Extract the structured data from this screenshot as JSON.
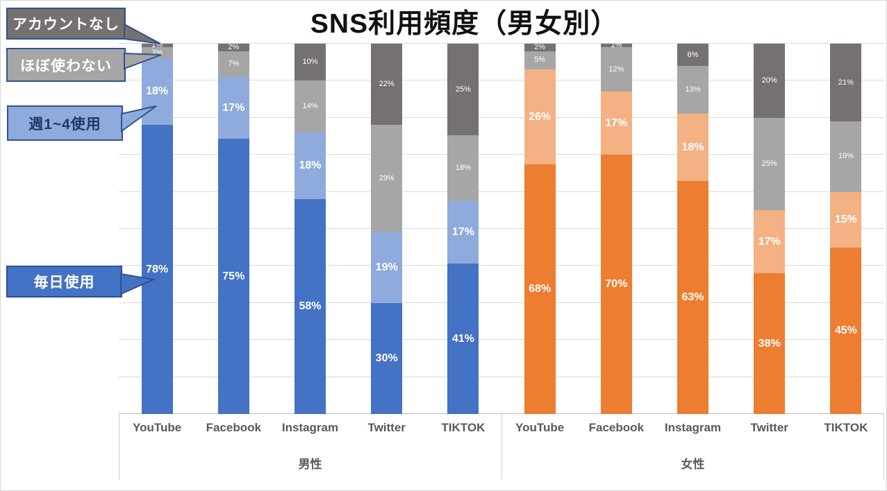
{
  "title": "SNS利用頻度（男女別）",
  "callouts": [
    {
      "label": "アカウントなし",
      "bg": "#767171",
      "text_color": "#ffffff",
      "border": "#2e5290"
    },
    {
      "label": "ほぼ使わない",
      "bg": "#a6a6a6",
      "text_color": "#ffffff",
      "border": "#2e5290"
    },
    {
      "label": "週1~4使用",
      "bg": "#8faadc",
      "text_color": "#1f3864",
      "border": "#2e5290"
    },
    {
      "label": "毎日使用",
      "bg": "#4472c4",
      "text_color": "#ffffff",
      "border": "#2e5290"
    }
  ],
  "chart_data": {
    "type": "bar",
    "subtype": "100%-stacked-column",
    "title": "SNS利用頻度（男女別）",
    "categories": [
      "YouTube",
      "Facebook",
      "Instagram",
      "Twitter",
      "TIKTOK"
    ],
    "stack_order_bottom_to_top": [
      "毎日使用",
      "週1~4使用",
      "ほぼ使わない",
      "アカウントなし"
    ],
    "groups": [
      {
        "label": "男性",
        "series": [
          {
            "name": "毎日使用",
            "color": "#4472c4",
            "label_style": "large",
            "values": [
              78,
              75,
              58,
              30,
              41
            ]
          },
          {
            "name": "週1~4使用",
            "color": "#8faadc",
            "label_style": "large",
            "values": [
              18,
              17,
              18,
              19,
              17
            ]
          },
          {
            "name": "ほぼ使わない",
            "color": "#a6a6a6",
            "label_style": "small",
            "values": [
              3,
              7,
              14,
              29,
              18
            ]
          },
          {
            "name": "アカウントなし",
            "color": "#767171",
            "label_style": "small",
            "values": [
              1,
              2,
              10,
              22,
              25
            ]
          }
        ]
      },
      {
        "label": "女性",
        "series": [
          {
            "name": "毎日使用",
            "color": "#ed7d31",
            "label_style": "large",
            "values": [
              68,
              70,
              63,
              38,
              45
            ]
          },
          {
            "name": "週1~4使用",
            "color": "#f4b183",
            "label_style": "large",
            "values": [
              26,
              17,
              18,
              17,
              15
            ]
          },
          {
            "name": "ほぼ使わない",
            "color": "#a6a6a6",
            "label_style": "small",
            "values": [
              5,
              12,
              13,
              25,
              19
            ]
          },
          {
            "name": "アカウントなし",
            "color": "#767171",
            "label_style": "small",
            "values": [
              2,
              1,
              6,
              20,
              21
            ]
          }
        ]
      }
    ],
    "value_suffix": "%",
    "ylim": [
      0,
      100
    ],
    "gridline_interval": 10,
    "grid": true,
    "legend_position": "left-callouts",
    "colors": {
      "gridline": "#d9d9d9",
      "axis_line": "#bfbfbf",
      "axis_text": "#595959",
      "title_text": "#111111"
    }
  }
}
